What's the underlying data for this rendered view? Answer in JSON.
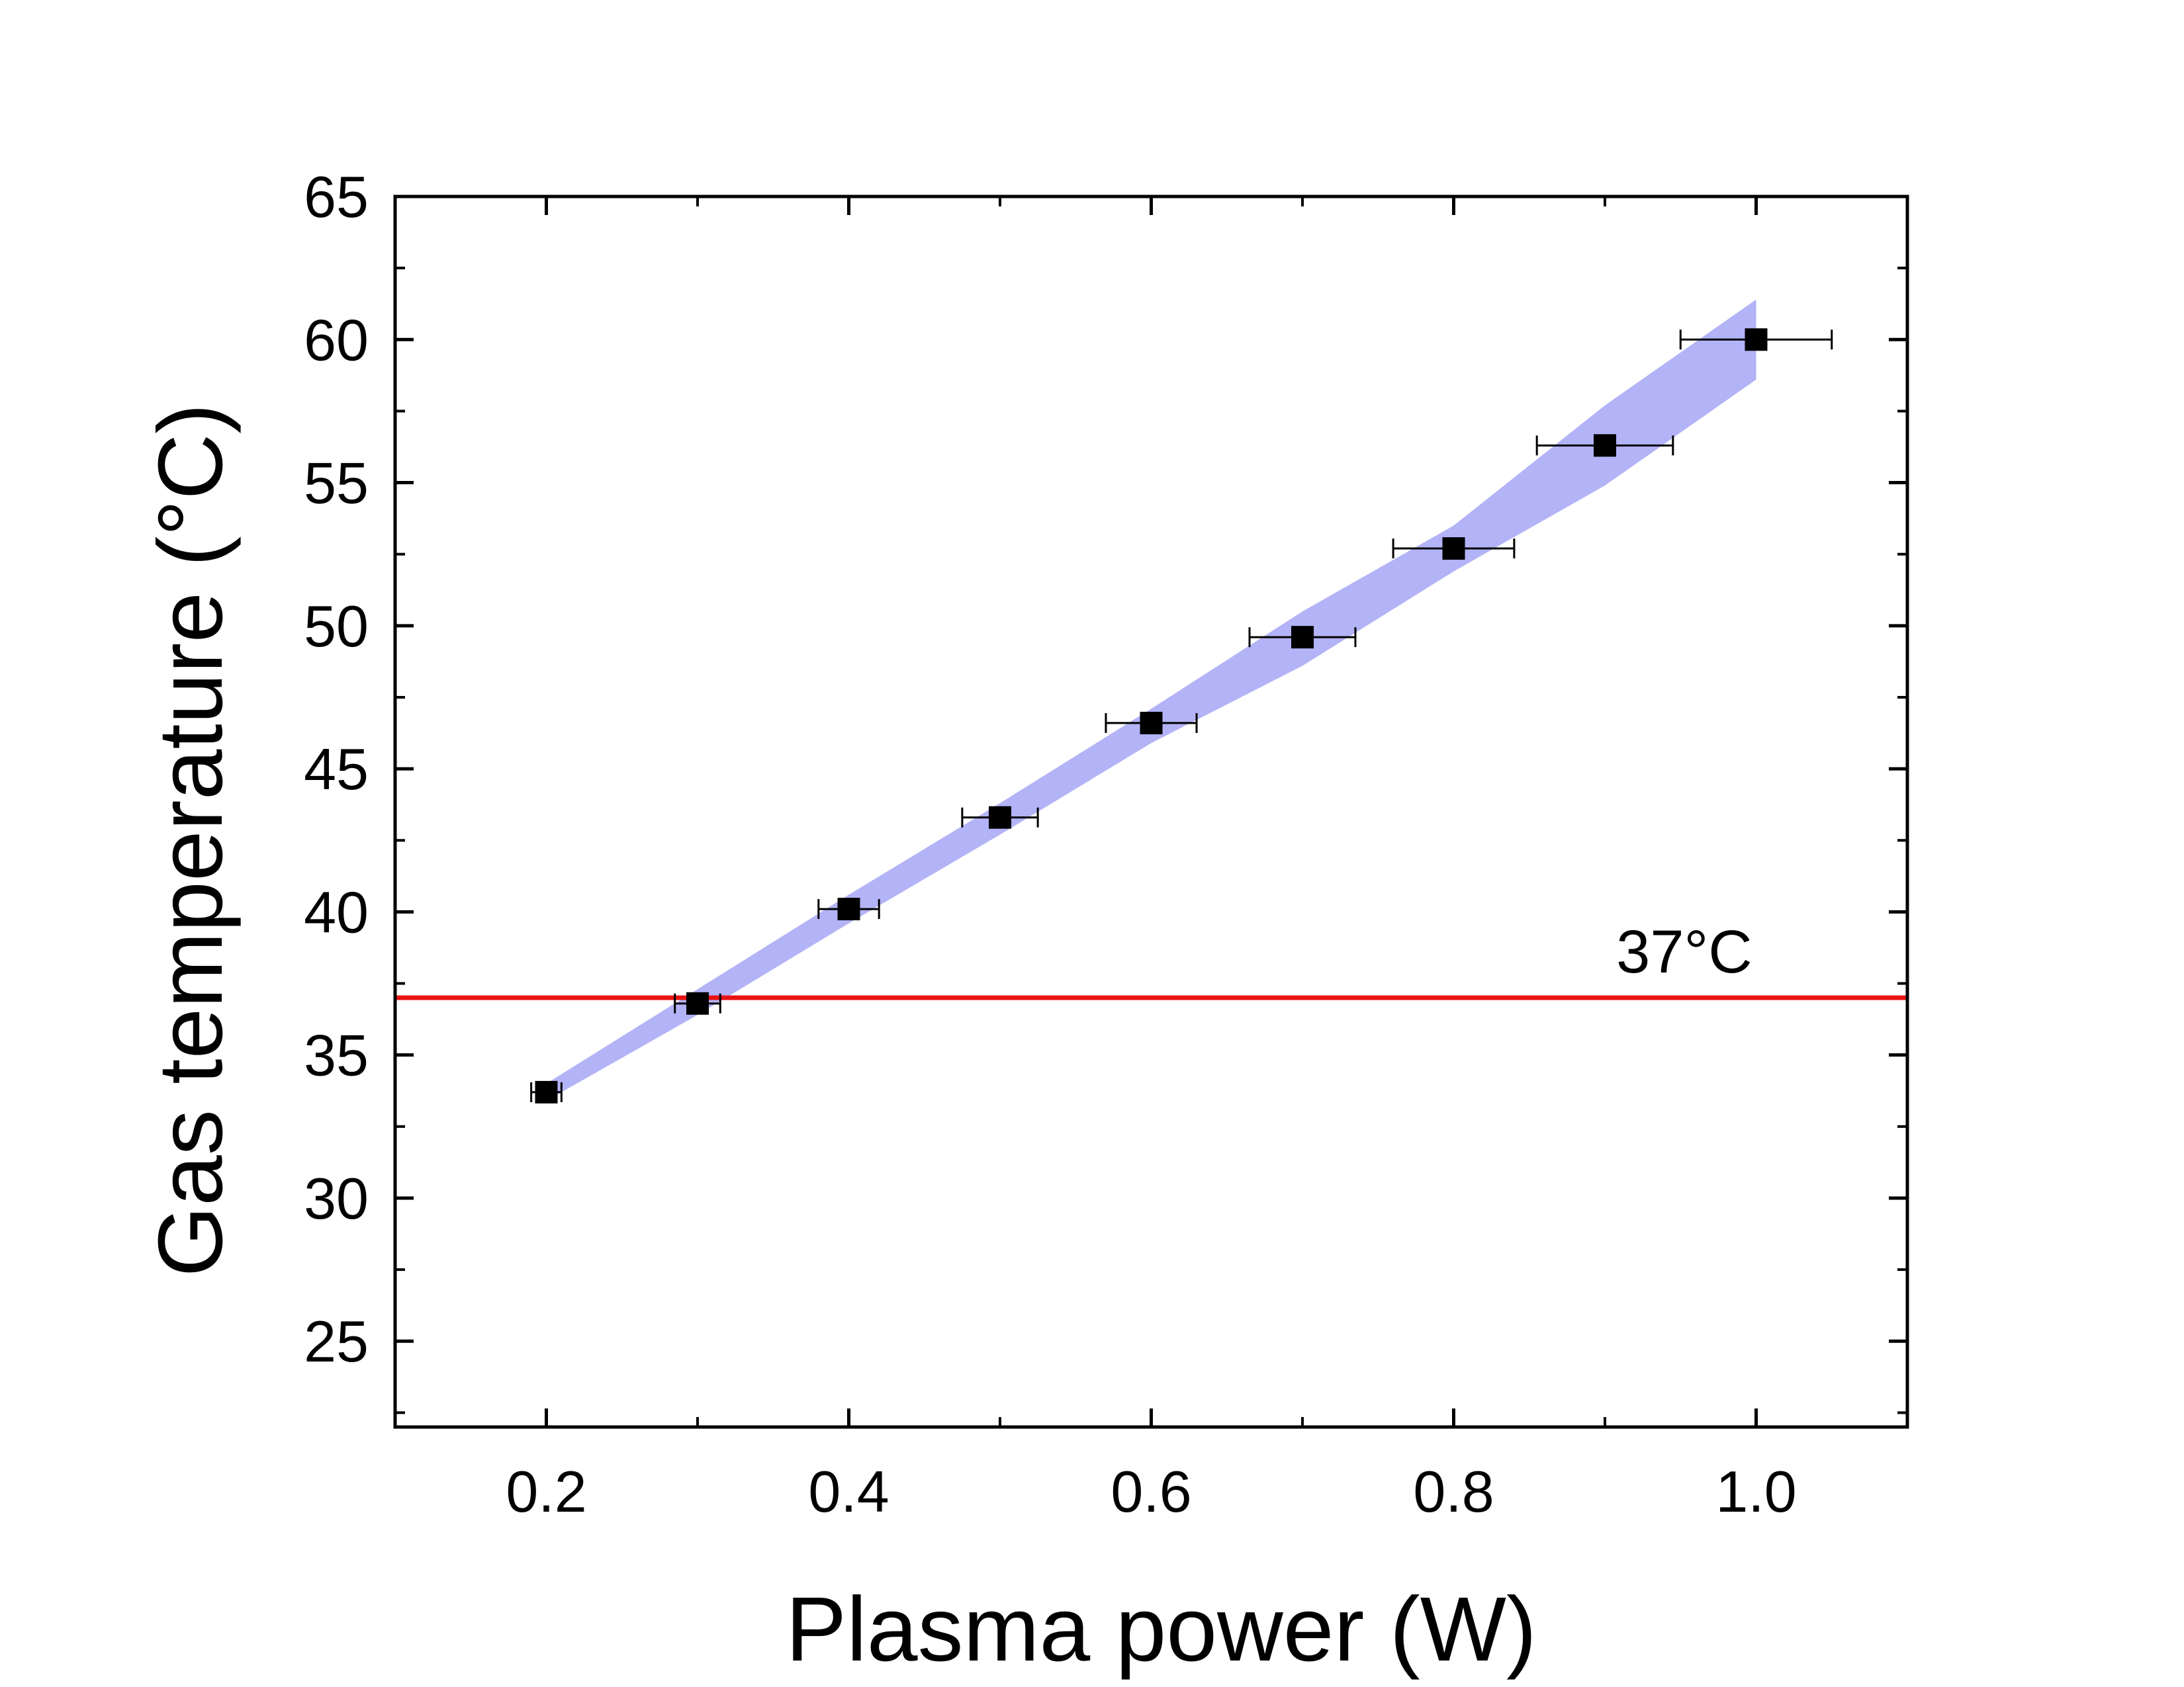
{
  "chart_data": {
    "type": "scatter",
    "title": "",
    "xlabel": "Plasma power (W)",
    "ylabel": "Gas temperature (°C)",
    "xlim": [
      0.1,
      1.1
    ],
    "ylim": [
      22,
      65
    ],
    "x_ticks": [
      0.2,
      0.4,
      0.6,
      0.8,
      1.0
    ],
    "x_tick_labels": [
      "0.2",
      "0.4",
      "0.6",
      "0.8",
      "1.0"
    ],
    "x_minor_ticks": [
      0.1,
      0.3,
      0.5,
      0.7,
      0.9,
      1.1
    ],
    "y_ticks": [
      25,
      30,
      35,
      40,
      45,
      50,
      55,
      60,
      65
    ],
    "y_tick_labels": [
      "25",
      "30",
      "35",
      "40",
      "45",
      "50",
      "55",
      "60",
      "65"
    ],
    "y_minor_ticks": [
      22.5,
      27.5,
      32.5,
      37.5,
      42.5,
      47.5,
      52.5,
      57.5,
      62.5
    ],
    "grid": false,
    "series": [
      {
        "name": "Gas temperature",
        "marker": "square",
        "color": "#000000",
        "x": [
          0.2,
          0.3,
          0.4,
          0.5,
          0.6,
          0.7,
          0.8,
          0.9,
          1.0
        ],
        "y": [
          33.7,
          36.8,
          40.1,
          43.3,
          46.6,
          49.6,
          52.7,
          56.3,
          60.0
        ],
        "x_err": [
          0.01,
          0.015,
          0.02,
          0.025,
          0.03,
          0.035,
          0.04,
          0.045,
          0.05
        ]
      }
    ],
    "confidence_band": {
      "color": "#b3b3f7",
      "x": [
        0.2,
        0.3,
        0.4,
        0.5,
        0.6,
        0.7,
        0.8,
        0.9,
        1.0
      ],
      "upper": [
        34.0,
        37.3,
        40.6,
        43.8,
        47.1,
        50.5,
        53.5,
        57.7,
        61.4
      ],
      "lower": [
        33.4,
        36.4,
        39.6,
        42.7,
        45.9,
        48.6,
        51.9,
        54.9,
        58.6
      ]
    },
    "reference_line": {
      "y": 37,
      "color": "#e81414",
      "label": "37°C"
    }
  }
}
